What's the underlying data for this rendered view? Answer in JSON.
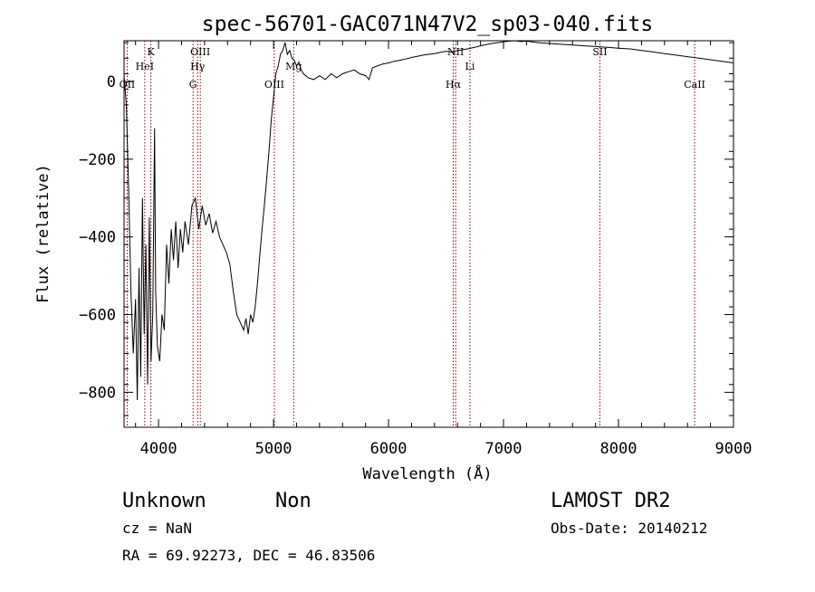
{
  "chart_data": {
    "type": "line",
    "title": "spec-56701-GAC071N47V2_sp03-040.fits",
    "xlabel": "Wavelength (Å)",
    "ylabel": "Flux (relative)",
    "xlim": [
      3700,
      9000
    ],
    "ylim": [
      -890,
      105
    ],
    "x_ticks": [
      4000,
      5000,
      6000,
      7000,
      8000,
      9000
    ],
    "y_ticks": [
      -800,
      -600,
      -400,
      -200,
      0
    ],
    "x_tick_labels": [
      "4000",
      "5000",
      "6000",
      "7000",
      "8000",
      "9000"
    ],
    "y_tick_labels": [
      "−800",
      "−600",
      "−400",
      "−200",
      "0"
    ],
    "grid": false,
    "series": [
      {
        "color": "#000000",
        "points": [
          [
            3700,
            15
          ],
          [
            3720,
            -60
          ],
          [
            3740,
            -280
          ],
          [
            3760,
            -540
          ],
          [
            3780,
            -700
          ],
          [
            3800,
            -560
          ],
          [
            3815,
            -820
          ],
          [
            3830,
            -480
          ],
          [
            3845,
            -760
          ],
          [
            3860,
            -300
          ],
          [
            3875,
            -650
          ],
          [
            3890,
            -420
          ],
          [
            3905,
            -780
          ],
          [
            3920,
            -350
          ],
          [
            3935,
            -720
          ],
          [
            3950,
            -600
          ],
          [
            3965,
            -120
          ],
          [
            3975,
            -540
          ],
          [
            3990,
            -680
          ],
          [
            4010,
            -720
          ],
          [
            4030,
            -600
          ],
          [
            4050,
            -640
          ],
          [
            4070,
            -420
          ],
          [
            4090,
            -520
          ],
          [
            4110,
            -380
          ],
          [
            4130,
            -460
          ],
          [
            4150,
            -360
          ],
          [
            4170,
            -480
          ],
          [
            4190,
            -380
          ],
          [
            4210,
            -440
          ],
          [
            4230,
            -360
          ],
          [
            4260,
            -420
          ],
          [
            4290,
            -320
          ],
          [
            4320,
            -300
          ],
          [
            4350,
            -380
          ],
          [
            4380,
            -320
          ],
          [
            4410,
            -370
          ],
          [
            4440,
            -340
          ],
          [
            4470,
            -390
          ],
          [
            4500,
            -360
          ],
          [
            4530,
            -400
          ],
          [
            4560,
            -420
          ],
          [
            4590,
            -440
          ],
          [
            4620,
            -470
          ],
          [
            4650,
            -540
          ],
          [
            4680,
            -600
          ],
          [
            4710,
            -620
          ],
          [
            4740,
            -640
          ],
          [
            4760,
            -610
          ],
          [
            4780,
            -650
          ],
          [
            4800,
            -600
          ],
          [
            4820,
            -620
          ],
          [
            4840,
            -580
          ],
          [
            4860,
            -520
          ],
          [
            4880,
            -450
          ],
          [
            4900,
            -380
          ],
          [
            4920,
            -320
          ],
          [
            4940,
            -250
          ],
          [
            4960,
            -180
          ],
          [
            4980,
            -100
          ],
          [
            5000,
            -40
          ],
          [
            5020,
            20
          ],
          [
            5040,
            40
          ],
          [
            5060,
            70
          ],
          [
            5080,
            80
          ],
          [
            5100,
            100
          ],
          [
            5120,
            70
          ],
          [
            5140,
            80
          ],
          [
            5160,
            60
          ],
          [
            5180,
            55
          ],
          [
            5200,
            40
          ],
          [
            5220,
            50
          ],
          [
            5240,
            30
          ],
          [
            5260,
            20
          ],
          [
            5300,
            10
          ],
          [
            5350,
            5
          ],
          [
            5400,
            15
          ],
          [
            5450,
            5
          ],
          [
            5500,
            20
          ],
          [
            5550,
            10
          ],
          [
            5600,
            20
          ],
          [
            5650,
            25
          ],
          [
            5700,
            30
          ],
          [
            5750,
            20
          ],
          [
            5800,
            15
          ],
          [
            5830,
            5
          ],
          [
            5860,
            35
          ],
          [
            5900,
            40
          ],
          [
            5950,
            45
          ],
          [
            6000,
            48
          ],
          [
            6050,
            52
          ],
          [
            6100,
            55
          ],
          [
            6150,
            58
          ],
          [
            6200,
            62
          ],
          [
            6250,
            65
          ],
          [
            6300,
            68
          ],
          [
            6350,
            70
          ],
          [
            6400,
            72
          ],
          [
            6450,
            75
          ],
          [
            6500,
            78
          ],
          [
            6560,
            75
          ],
          [
            6600,
            80
          ],
          [
            6650,
            82
          ],
          [
            6700,
            85
          ],
          [
            6750,
            88
          ],
          [
            6800,
            92
          ],
          [
            6850,
            95
          ],
          [
            6900,
            98
          ],
          [
            6950,
            100
          ],
          [
            7000,
            102
          ],
          [
            7050,
            104
          ],
          [
            7100,
            105
          ],
          [
            7150,
            103
          ],
          [
            7200,
            104
          ],
          [
            7300,
            100
          ],
          [
            7400,
            98
          ],
          [
            7500,
            96
          ],
          [
            7600,
            94
          ],
          [
            7700,
            92
          ],
          [
            7800,
            90
          ],
          [
            7900,
            88
          ],
          [
            8000,
            86
          ],
          [
            8100,
            84
          ],
          [
            8200,
            80
          ],
          [
            8300,
            76
          ],
          [
            8400,
            72
          ],
          [
            8500,
            68
          ],
          [
            8600,
            64
          ],
          [
            8700,
            60
          ],
          [
            8800,
            56
          ],
          [
            8900,
            52
          ],
          [
            8950,
            50
          ],
          [
            9000,
            48
          ]
        ]
      }
    ],
    "lines": [
      {
        "x": 3727,
        "color": "#8b0000",
        "labels": [
          {
            "text": "OII",
            "row": 3
          }
        ]
      },
      {
        "x": 3880,
        "color": "#8b0000",
        "labels": [
          {
            "text": "HeI",
            "row": 2
          }
        ]
      },
      {
        "x": 3933,
        "color": "#8b0000",
        "labels": [
          {
            "text": "K",
            "row": 1
          }
        ]
      },
      {
        "x": 4300,
        "color": "#8b0000",
        "labels": [
          {
            "text": "G",
            "row": 3
          }
        ]
      },
      {
        "x": 4340,
        "color": "#8b0000",
        "labels": [
          {
            "text": "Hγ",
            "row": 2
          }
        ]
      },
      {
        "x": 4363,
        "color": "#8b0000",
        "labels": [
          {
            "text": "OIII",
            "row": 1
          }
        ]
      },
      {
        "x": 5007,
        "color": "#8b0000",
        "labels": [
          {
            "text": "OIII",
            "row": 3
          }
        ]
      },
      {
        "x": 5175,
        "color": "#8b0000",
        "labels": [
          {
            "text": "Mg",
            "row": 2
          }
        ]
      },
      {
        "x": 6563,
        "color": "#8b0000",
        "labels": [
          {
            "text": "Hα",
            "row": 3
          }
        ]
      },
      {
        "x": 6584,
        "color": "#8b0000",
        "labels": [
          {
            "text": "NII",
            "row": 1
          }
        ]
      },
      {
        "x": 6708,
        "color": "#8b0000",
        "labels": [
          {
            "text": "Li",
            "row": 2
          }
        ]
      },
      {
        "x": 7838,
        "color": "#8b0000",
        "labels": [
          {
            "text": "SII",
            "row": 1
          }
        ]
      },
      {
        "x": 8662,
        "color": "#8b0000",
        "labels": [
          {
            "text": "CaII",
            "row": 3
          }
        ]
      }
    ]
  },
  "info": {
    "class": "Unknown",
    "subclass": "Non",
    "cz": "cz = NaN",
    "coords": "RA =  69.92273, DEC =  46.83506",
    "survey": "LAMOST DR2",
    "obs_date": "Obs-Date: 20140212"
  }
}
